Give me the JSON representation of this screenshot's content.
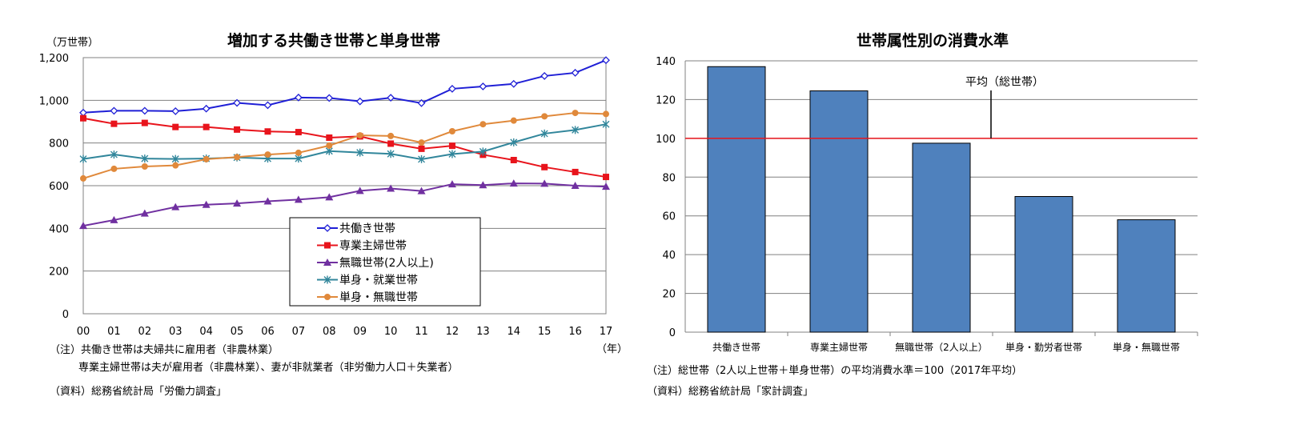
{
  "chart_data": [
    {
      "type": "line",
      "title": "増加する共働き世帯と単身世帯",
      "ylabel": "（万世帯）",
      "xlabel": "（年）",
      "categories": [
        "00",
        "01",
        "02",
        "03",
        "04",
        "05",
        "06",
        "07",
        "08",
        "09",
        "10",
        "11",
        "12",
        "13",
        "14",
        "15",
        "16",
        "17"
      ],
      "ylim": [
        0,
        1200
      ],
      "yticks": [
        0,
        200,
        400,
        600,
        800,
        1000,
        1200
      ],
      "ytick_labels": [
        "0",
        "200",
        "400",
        "600",
        "800",
        "1,000",
        "1,200"
      ],
      "grid": true,
      "legend_position": "center-bottom",
      "series": [
        {
          "name": "共働き世帯",
          "color": "#1f1fd6",
          "marker": "diamond-open",
          "values": [
            942,
            951,
            951,
            949,
            961,
            988,
            977,
            1013,
            1011,
            995,
            1012,
            987,
            1054,
            1065,
            1077,
            1114,
            1129,
            1188
          ]
        },
        {
          "name": "専業主婦世帯",
          "color": "#e8141c",
          "marker": "square",
          "values": [
            916,
            890,
            894,
            875,
            875,
            863,
            854,
            851,
            825,
            831,
            797,
            773,
            787,
            745,
            720,
            687,
            664,
            641
          ]
        },
        {
          "name": "無職世帯(2人以上)",
          "color": "#7030a0",
          "marker": "triangle",
          "values": [
            412,
            439,
            470,
            500,
            511,
            517,
            527,
            535,
            546,
            576,
            587,
            575,
            607,
            603,
            611,
            610,
            600,
            596
          ]
        },
        {
          "name": "単身・就業世帯",
          "color": "#31869b",
          "marker": "star",
          "values": [
            725,
            746,
            727,
            725,
            727,
            732,
            727,
            727,
            762,
            755,
            749,
            724,
            748,
            760,
            803,
            844,
            861,
            888
          ]
        },
        {
          "name": "単身・無職世帯",
          "color": "#e0893b",
          "marker": "circle",
          "values": [
            634,
            679,
            690,
            695,
            724,
            734,
            746,
            754,
            788,
            836,
            833,
            802,
            855,
            888,
            905,
            925,
            941,
            936
          ]
        }
      ]
    },
    {
      "type": "bar",
      "title": "世帯属性別の消費水準",
      "categories": [
        "共働き世帯",
        "専業主婦世帯",
        "無職世帯（2人以上）",
        "単身・勤労者世帯",
        "単身・無職世帯"
      ],
      "values": [
        137,
        124.5,
        97.5,
        70,
        58
      ],
      "ylim": [
        0,
        140
      ],
      "yticks": [
        0,
        20,
        40,
        60,
        80,
        100,
        120,
        140
      ],
      "reference_line": {
        "value": 100,
        "label": "平均（総世帯）",
        "color": "#e8141c"
      },
      "bar_color": "#4f81bd",
      "grid": true
    }
  ],
  "notes": {
    "left_note1": "（注）共働き世帯は夫婦共に雇用者（非農林業）",
    "left_note2": "専業主婦世帯は夫が雇用者（非農林業）、妻が非就業者（非労働力人口＋失業者）",
    "left_source": "（資料）総務省統計局「労働力調査」",
    "right_note": "（注）総世帯（2人以上世帯＋単身世帯）の平均消費水準＝100（2017年平均）",
    "right_source": "（資料）総務省統計局「家計調査」"
  }
}
